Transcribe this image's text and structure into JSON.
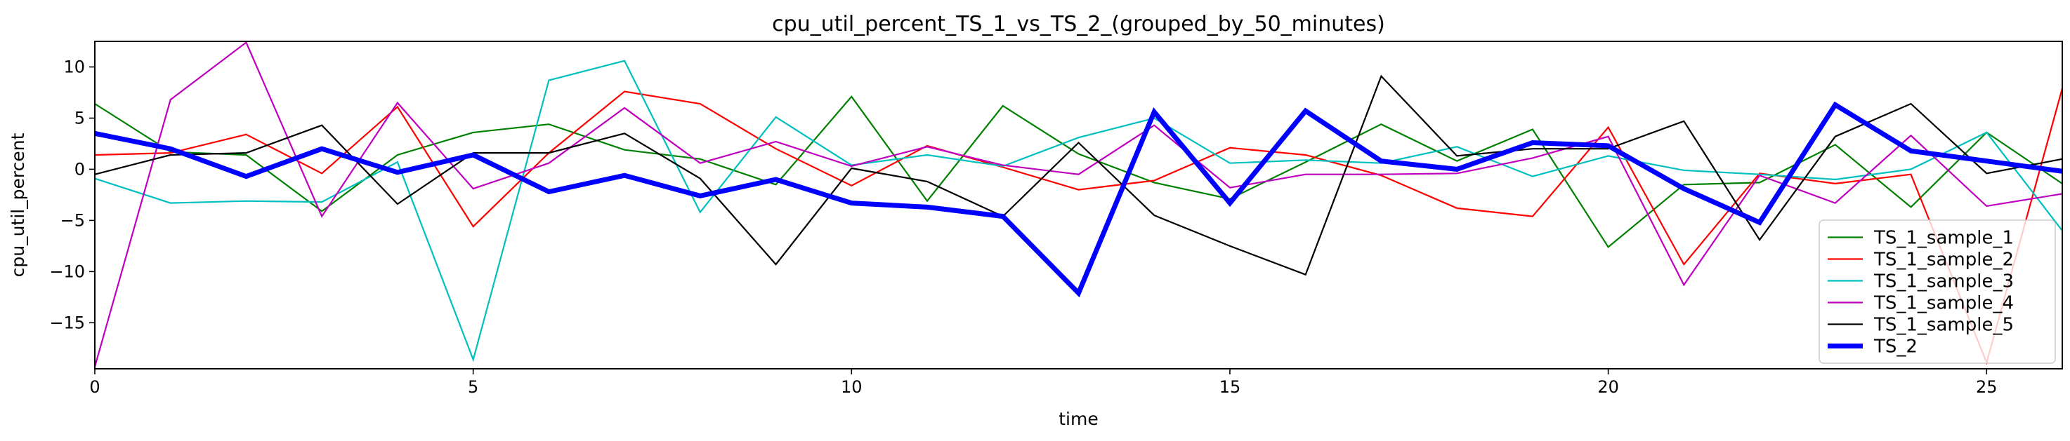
{
  "chart_data": {
    "type": "line",
    "title": "cpu_util_percent_TS_1_vs_TS_2_(grouped_by_50_minutes)",
    "xlabel": "time",
    "ylabel": "cpu_util_percent",
    "xlim": [
      0,
      26
    ],
    "ylim": [
      -19.5,
      12.5
    ],
    "xticks": [
      0,
      5,
      10,
      15,
      20,
      25
    ],
    "yticks": [
      10,
      5,
      0,
      -5,
      -10,
      -15
    ],
    "grid": false,
    "legend_position": "lower-right",
    "x": [
      0,
      1,
      2,
      3,
      4,
      5,
      6,
      7,
      8,
      9,
      10,
      11,
      12,
      13,
      14,
      15,
      16,
      17,
      18,
      19,
      20,
      21,
      22,
      23,
      24,
      25,
      26
    ],
    "series": [
      {
        "name": "TS_1_sample_1",
        "color": "#008000",
        "values": [
          6.4,
          1.7,
          1.4,
          -4.1,
          1.4,
          3.6,
          4.4,
          1.9,
          1.0,
          -1.5,
          7.1,
          -3.1,
          6.2,
          1.5,
          -1.3,
          -2.9,
          0.7,
          4.4,
          0.8,
          3.9,
          -7.6,
          -1.5,
          -1.3,
          2.4,
          -3.7,
          3.6,
          -1.4
        ]
      },
      {
        "name": "TS_1_sample_2",
        "color": "#ff0000",
        "values": [
          1.4,
          1.6,
          3.4,
          -0.4,
          6.1,
          -5.6,
          1.6,
          7.6,
          6.4,
          2.0,
          -1.6,
          2.3,
          0.2,
          -2.0,
          -1.1,
          2.1,
          1.4,
          -0.6,
          -3.8,
          -4.6,
          4.1,
          -9.3,
          -0.4,
          -1.4,
          -0.5,
          -18.9,
          7.9
        ]
      },
      {
        "name": "TS_1_sample_3",
        "color": "#00bfbf",
        "values": [
          -0.9,
          -3.3,
          -3.1,
          -3.2,
          0.7,
          -18.6,
          8.7,
          10.6,
          -4.2,
          5.1,
          0.4,
          1.4,
          0.3,
          3.1,
          5.0,
          0.6,
          0.9,
          0.6,
          2.2,
          -0.7,
          1.3,
          -0.1,
          -0.5,
          -1.0,
          0.0,
          3.6,
          -6.0
        ]
      },
      {
        "name": "TS_1_sample_4",
        "color": "#bf00bf",
        "values": [
          -19.3,
          6.8,
          12.4,
          -4.6,
          6.5,
          -1.9,
          0.6,
          6.0,
          0.6,
          2.7,
          0.3,
          2.2,
          0.4,
          -0.5,
          4.3,
          -1.8,
          -0.5,
          -0.5,
          -0.4,
          1.1,
          3.2,
          -11.3,
          -0.6,
          -3.3,
          3.3,
          -3.6,
          -2.4
        ]
      },
      {
        "name": "TS_1_sample_5",
        "color": "#000000",
        "values": [
          -0.5,
          1.4,
          1.6,
          4.3,
          -3.4,
          1.6,
          1.6,
          3.5,
          -0.9,
          -9.3,
          0.1,
          -1.2,
          -4.6,
          2.6,
          -4.5,
          -7.5,
          -10.3,
          9.1,
          1.3,
          2.0,
          2.0,
          4.7,
          -6.9,
          3.2,
          6.4,
          -0.4,
          1.0
        ]
      },
      {
        "name": "TS_2",
        "color": "#0000ff",
        "values": [
          3.5,
          2.0,
          -0.7,
          2.0,
          -0.3,
          1.4,
          -2.2,
          -0.6,
          -2.6,
          -1.0,
          -3.3,
          -3.7,
          -4.6,
          -12.1,
          5.6,
          -3.3,
          5.7,
          0.8,
          0.0,
          2.6,
          2.3,
          -1.9,
          -5.2,
          6.3,
          1.8,
          0.8,
          -0.2
        ]
      }
    ]
  }
}
